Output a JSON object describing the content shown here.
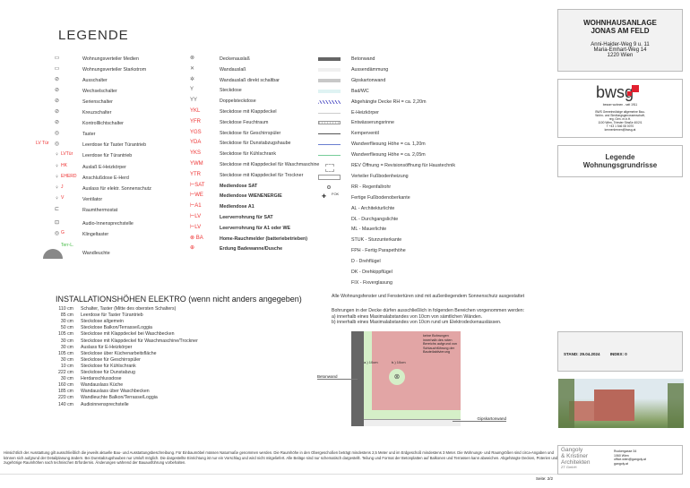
{
  "title": "LEGENDE",
  "col1": [
    {
      "icon": "verteiler-icon",
      "tag": "",
      "label": "Wohnungsverteiler Medien"
    },
    {
      "icon": "verteiler-icon",
      "tag": "",
      "label": "Wohnungsverteiler Starkstrom"
    },
    {
      "icon": "switch-icon",
      "tag": "",
      "label": "Ausschalter"
    },
    {
      "icon": "switch-icon",
      "tag": "",
      "label": "Wechselschalter"
    },
    {
      "icon": "switch-icon",
      "tag": "",
      "label": "Serienschalter"
    },
    {
      "icon": "switch-icon",
      "tag": "",
      "label": "Kreuzschalter"
    },
    {
      "icon": "switch-icon",
      "tag": "",
      "label": "Kontrolllichtschalter"
    },
    {
      "icon": "button-icon",
      "tag": "",
      "label": "Taster"
    },
    {
      "icon": "button-icon",
      "tag": "LV Tür",
      "label": "Leerdose für Taster Türantrieb"
    },
    {
      "icon": "outlet-icon",
      "tag": "LVTür",
      "label": "Leerdose für Türantrieb"
    },
    {
      "icon": "outlet-icon",
      "tag": "HK",
      "label": "Auslaß E-Heizkörper"
    },
    {
      "icon": "outlet-icon",
      "tag": "EHERD",
      "label": "Anschlußdose E-Herd"
    },
    {
      "icon": "outlet-icon",
      "tag": "J",
      "label": "Auslass für elektr. Sonnenschutz"
    },
    {
      "icon": "outlet-icon",
      "tag": "V",
      "label": "Ventilator"
    },
    {
      "icon": "thermostat-icon",
      "tag": "",
      "label": "Raumthermostat"
    },
    {
      "icon": "intercom-icon",
      "tag": "",
      "label": "Audio-Innensprechstelle"
    },
    {
      "icon": "bell-icon",
      "tag": "G",
      "label": "Klingeltaster"
    },
    {
      "icon": "wall-lamp-icon",
      "tag": "Terr-L.",
      "label": "Wandleuchte"
    }
  ],
  "col2": [
    {
      "icon": "⊗",
      "label": "Deckenauslaß"
    },
    {
      "icon": "✕",
      "label": "Wandauslaß"
    },
    {
      "icon": "✲",
      "label": "Wandauslaß direkt schaltbar"
    },
    {
      "icon": "Y",
      "label": "Steckdose"
    },
    {
      "icon": "YY",
      "label": "Doppelsteckdose"
    },
    {
      "icon": "YKL",
      "label": "Steckdose mit Klappdeckel"
    },
    {
      "icon": "YFR",
      "label": "Steckdose Feuchtraum"
    },
    {
      "icon": "YGS",
      "label": "Steckdose für Geschirrspüler"
    },
    {
      "icon": "YDA",
      "label": "Steckdose für Dunstabzugshaube"
    },
    {
      "icon": "YKS",
      "label": "Steckdose für Kühlschrank"
    },
    {
      "icon": "YWM",
      "label": "Steckdose mit Klappdeckel für Waschmaschine"
    },
    {
      "icon": "YTR",
      "label": "Steckdose mit Klappdeckel für Trockner"
    },
    {
      "icon": "⊢SAT",
      "label": "Mediendose SAT"
    },
    {
      "icon": "⊢WE",
      "label": "Mediendose WIENENERGIE"
    },
    {
      "icon": "⊢A1",
      "label": "Mediendose A1"
    },
    {
      "icon": "⊢LV",
      "label": "Leerverrohrung für SAT"
    },
    {
      "icon": "⊢LV",
      "label": "Leerverrohrung für A1 oder WE"
    },
    {
      "icon": "⊗ BA",
      "label": "Home-Rauchmelder (batteriebetrieben)"
    },
    {
      "icon": "⊕",
      "label": "Erdung Badewanne/Dusche"
    }
  ],
  "col3": [
    {
      "swatch": "#666666",
      "label": "Betonwand"
    },
    {
      "swatch": "#f0f0f0",
      "label": "Aussendämmung"
    },
    {
      "swatch": "#c8c8c8",
      "label": "Gipskartonwand"
    },
    {
      "swatch": "#dff3f3",
      "label": "Bad/WC"
    },
    {
      "swatch": "hatch",
      "label": "Abgehängte Decke RH = ca. 2,20m"
    },
    {
      "swatch": "line-gray",
      "label": "E-Heizkörper"
    },
    {
      "swatch": "grid",
      "label": "Entwässerungsrinne"
    },
    {
      "swatch": "valve",
      "label": "Kemperventil"
    },
    {
      "swatch": "line-blue",
      "label": "Wandverfliesung Höhe = ca. 1,20m"
    },
    {
      "swatch": "line-green",
      "label": "Wandverfliesung Höhe = ca. 2,05m"
    },
    {
      "swatch": "dashbox",
      "label": "REV Öffnung = Revisionsöffnung für Haustechnik"
    },
    {
      "swatch": "box",
      "label": "Verteiler Fußbodenheizung"
    },
    {
      "swatch": "circle",
      "label": "RR - Regenfallrohr"
    },
    {
      "swatch": "ffok",
      "label": "Fertige Fußbodenoberkante"
    },
    {
      "swatch": "",
      "label": "AL - Architekturlichte"
    },
    {
      "swatch": "",
      "label": "DL - Durchgangslichte"
    },
    {
      "swatch": "",
      "label": "ML - Mauerlichte"
    },
    {
      "swatch": "",
      "label": "STUK - Sturzunterkante"
    },
    {
      "swatch": "",
      "label": "FPH - Fertig Parapethöhe"
    },
    {
      "swatch": "",
      "label": "D - Drehflügel"
    },
    {
      "swatch": "",
      "label": "DK - Drehkippflügel"
    },
    {
      "swatch": "",
      "label": "FIX - Fixverglasung"
    }
  ],
  "ffok_tag": "FOK",
  "note_sonnenschutz": "Alle Wohnungsfenster und Fenstertüren sind mit außenliegendem Sonnenschutz ausgestattet",
  "note_bohrungen": [
    "Bohrungen in der Decke dürfen ausschließlich in folgenden Bereichen vorgenommen werden:",
    "a) innerhalb eines Maximalabstandes von 10cm von sämtlichen Wänden.",
    "b) innerhalb eines Maximalabstandes von 10cm rund um Elektrodeckenauslässen."
  ],
  "diagram": {
    "betonwand": "Betonwand",
    "gipskartonwand": "Gipskartonwand",
    "dim_a": "a.) 10cm",
    "dim_b": "b.) 10cm",
    "warning": "keine Bohrungen innerhalb des roten Bereichs aufgrund von Schlauchführung der Bauteilaktivierung"
  },
  "installation": {
    "title": "INSTALLATIONSHÖHEN ELEKTRO (wenn nicht anders angegeben)",
    "rows": [
      [
        "110 cm",
        "Schalter, Taster (Mitte des obersten Schalters)"
      ],
      [
        "85 cm",
        "Leerdose für Taster Türantrieb"
      ],
      [
        "30 cm",
        "Steckdose allgemein"
      ],
      [
        "50 cm",
        "Steckdose Balkon/Terrasse/Loggia"
      ],
      [
        "105 cm",
        "Steckdose mit Klappdeckel bei Waschbecken"
      ],
      [
        "30 cm",
        "Steckdose mit Klappdeckel für Waschmaschine/Trockner"
      ],
      [
        "30 cm",
        "Auslass für E-Heizkörper"
      ],
      [
        "105 cm",
        "Steckdose über Küchenarbeitsfläche"
      ],
      [
        "30 cm",
        "Steckdose für Geschirrspüler"
      ],
      [
        "10 cm",
        "Steckdose für Kühlschrank"
      ],
      [
        "222 cm",
        "Steckdose für Dunstabzug"
      ],
      [
        "30 cm",
        "Herdanschlussdose"
      ],
      [
        "160 cm",
        "Wandauslass Küche"
      ],
      [
        "185 cm",
        "Wandauslass über Waschbecken"
      ],
      [
        "220 cm",
        "Wandleuchte Balkon/Terrasse/Loggia"
      ],
      [
        "140 cm",
        "Audioinnensprechstelle"
      ]
    ]
  },
  "footer": {
    "text": "Hinsichtlich der Ausstattung gilt ausschließlich die jeweils aktuelle Bau- und Ausstattungsbeschreibung. Für Einbaumöbel müssen Naturmaße genommen werden. Die Raumhöhe in den Obergeschoßen beträgt mindestens 2,5 Meter und im Erdgeschoß mindestens 3 Meter. Die Wohnungs- und Raumgrößen sind circa-Angaben und können sich aufgrund der Detailplanung ändern. Bei Dunstabzugshauben nur Umluft möglich. Die dargestellte Einrichtung ist nur ein Vorschlag und wird nicht mitgeliefert. Alle Beläge sind nur schematisch dargestellt. Teilung und Format der Betonplatten auf Balkonen und Terrassen kann abweichen. Abgehängte Decken, Poterien und zugehörige Raumhöhen nach technischen Erfordernis. Änderungen während der Bauausführung vorbehalten.",
    "page": "Seite: 2/2"
  },
  "project": {
    "name": "WOHNHAUSANLAGE",
    "name2": "JONAS AM FELD",
    "addr1": "Anni-Haider-Weg 9 u. 11",
    "addr2": "Maria-Emhart-Weg 14",
    "addr3": "1220 Wien"
  },
  "bwsg": {
    "logo": "bwsg",
    "slogan": "besser wohnen - seit 1911",
    "l1": "BWS Gemeinnützige allgemeine Bau-",
    "l2": "Wohn- und Siedlungsgenossenschaft,",
    "l3": "reg. Gen. m.b.H.",
    "l4": "1100 Wien, Triester Straße 40/2/1",
    "l5": "T +43 1 546 08 0070",
    "l6": "kennenlernen@bwsg.at",
    "accent": "#e2202f"
  },
  "sheet": {
    "l1": "Legende",
    "l2": "Wohnungsgrundrisse"
  },
  "stand": {
    "label": "STAND:",
    "date": "29.04.2024",
    "index_label": "INDEX:",
    "index": "0"
  },
  "architect": {
    "n1": "Gangoly",
    "n2": "& Kristiner",
    "n3": "Architekten",
    "n4": "ZT GmbH",
    "a1": "Ruckergasse 34",
    "a2": "1060 Wien",
    "a3": "office.wien@gangoly.at",
    "a4": "gangoly.at"
  }
}
